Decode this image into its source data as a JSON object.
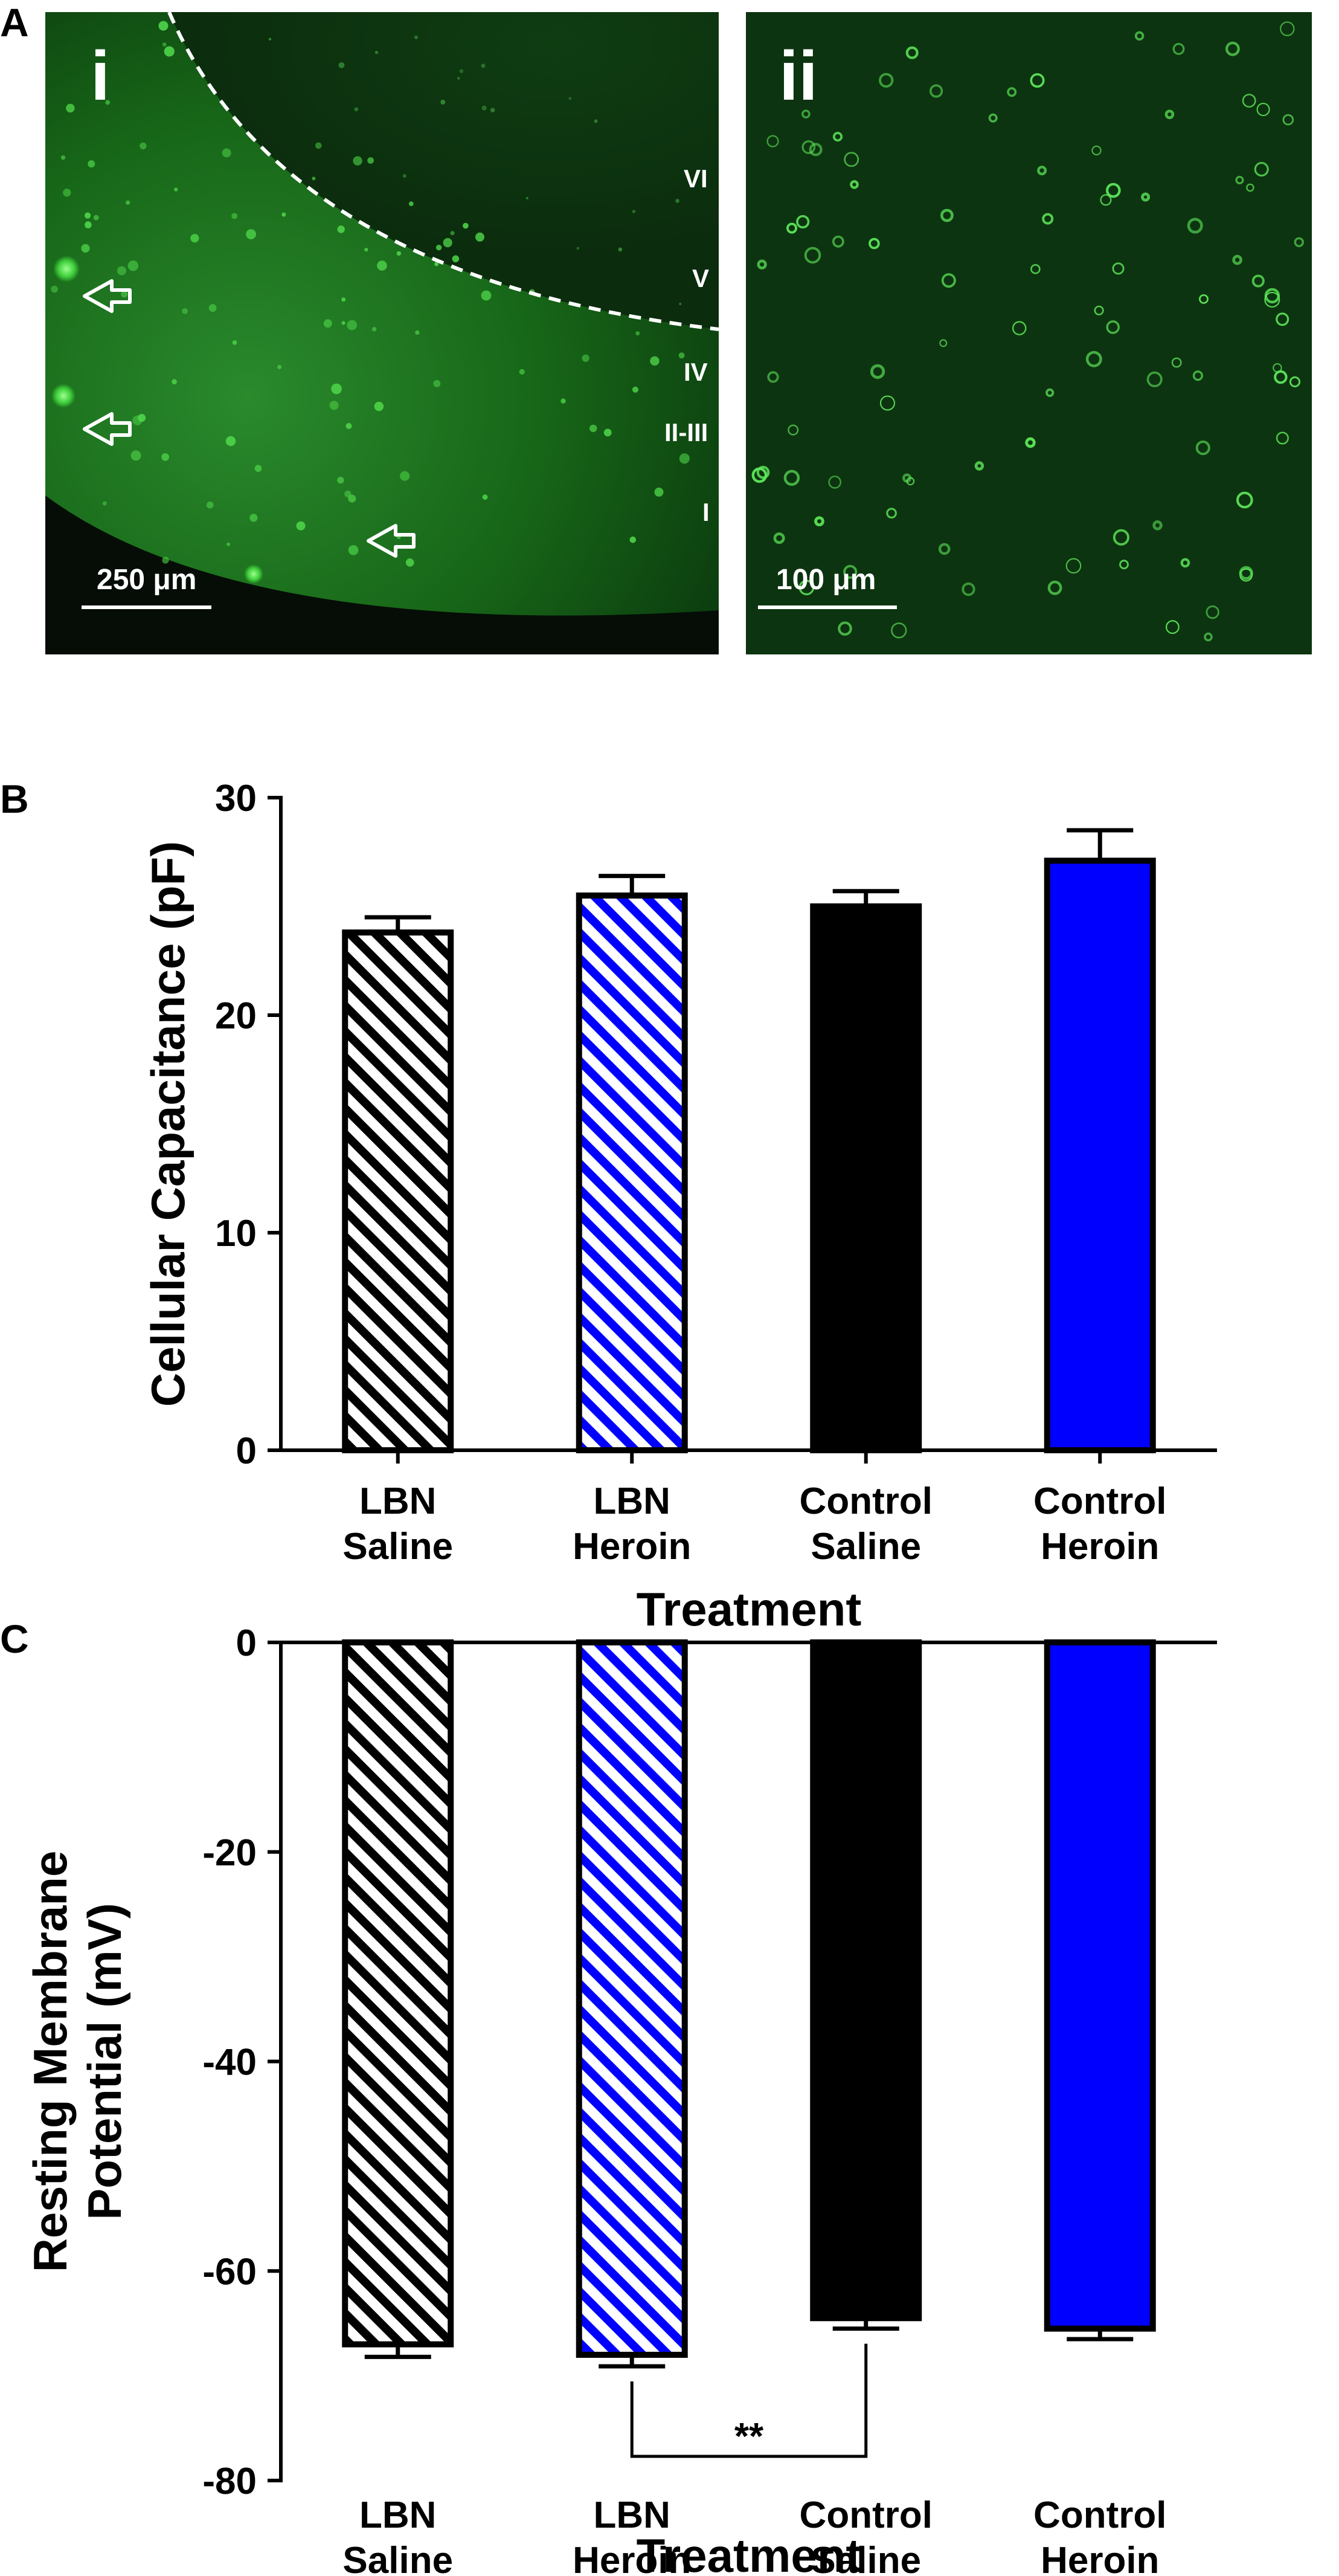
{
  "panels": {
    "a": "A",
    "b": "B",
    "c": "C"
  },
  "micrographs": [
    {
      "label": "i",
      "scale_bar": "250 μm",
      "layers": [
        "VI",
        "V",
        "IV",
        "II-III",
        "I"
      ]
    },
    {
      "label": "ii",
      "scale_bar": "100 μm"
    }
  ],
  "colors": {
    "fluorescence": "#1fae2a",
    "tissue_dark": "#0a2a0c",
    "heroin_blue": "#0000ff",
    "black": "#000000"
  },
  "chart_data": [
    {
      "type": "bar",
      "title": "",
      "categories": [
        [
          "LBN",
          "Saline"
        ],
        [
          "LBN",
          "Heroin"
        ],
        [
          "Control",
          "Saline"
        ],
        [
          "Control",
          "Heroin"
        ]
      ],
      "values": [
        23.8,
        25.5,
        25.0,
        27.1
      ],
      "errors": [
        0.7,
        0.9,
        0.7,
        1.4
      ],
      "fills": [
        "hatch-black",
        "hatch-blue",
        "solid-black",
        "solid-blue"
      ],
      "xlabel": "Treatment",
      "ylabel": "Cellular Capacitance (pF)",
      "ylim": [
        0,
        30
      ],
      "yticks": [
        0,
        10,
        20,
        30
      ],
      "ytick_labels": [
        "0",
        "10",
        "20",
        "30"
      ]
    },
    {
      "type": "bar",
      "title": "",
      "categories": [
        [
          "LBN",
          "Saline"
        ],
        [
          "LBN",
          "Heroin"
        ],
        [
          "Control",
          "Saline"
        ],
        [
          "Control",
          "Heroin"
        ]
      ],
      "values": [
        -67.0,
        -68.0,
        -64.5,
        -65.5
      ],
      "errors": [
        1.2,
        1.1,
        1.0,
        1.0
      ],
      "fills": [
        "hatch-black",
        "hatch-blue",
        "solid-black",
        "solid-blue"
      ],
      "xlabel": "Treatment",
      "ylabel": [
        "Resting Membrane",
        "Potential (mV)"
      ],
      "ylim": [
        -80,
        0
      ],
      "yticks": [
        0,
        -20,
        -40,
        -60,
        -80
      ],
      "ytick_labels": [
        "0",
        "-20",
        "-40",
        "-60",
        "-80"
      ],
      "significance": {
        "from": 1,
        "to": 2,
        "label": "**"
      }
    }
  ]
}
